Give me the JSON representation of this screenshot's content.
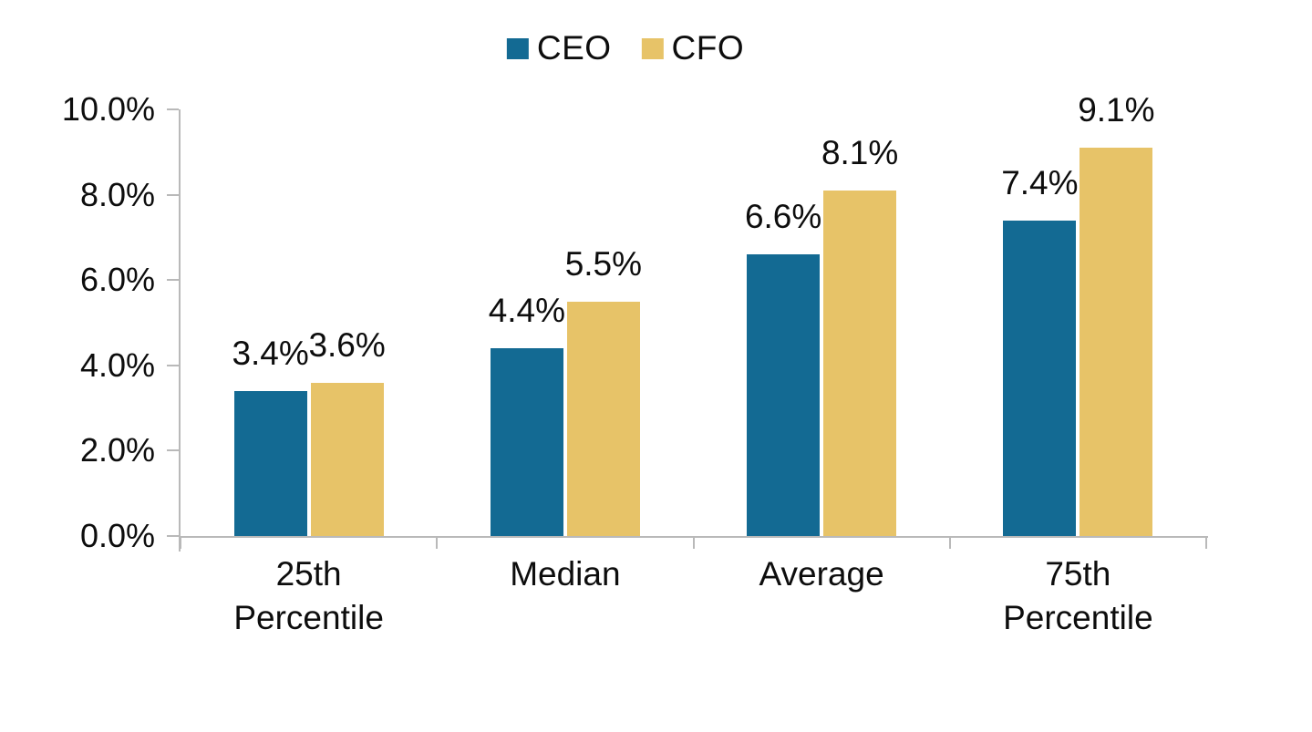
{
  "chart_data": {
    "type": "bar",
    "title": "",
    "categories": [
      "25th Percentile",
      "Median",
      "Average",
      "75th Percentile"
    ],
    "category_lines": [
      [
        "25th",
        "Percentile"
      ],
      [
        "Median"
      ],
      [
        "Average"
      ],
      [
        "75th",
        "Percentile"
      ]
    ],
    "series": [
      {
        "name": "CEO",
        "color": "#136a93",
        "values": [
          3.4,
          4.4,
          6.6,
          7.4
        ],
        "labels": [
          "3.4%",
          "4.4%",
          "6.6%",
          "7.4%"
        ]
      },
      {
        "name": "CFO",
        "color": "#e7c368",
        "values": [
          3.6,
          5.5,
          8.1,
          9.1
        ],
        "labels": [
          "3.6%",
          "5.5%",
          "8.1%",
          "9.1%"
        ]
      }
    ],
    "ylim": [
      0,
      10
    ],
    "yticks": [
      {
        "value": 0,
        "label": "0.0%"
      },
      {
        "value": 2,
        "label": "2.0%"
      },
      {
        "value": 4,
        "label": "4.0%"
      },
      {
        "value": 6,
        "label": "6.0%"
      },
      {
        "value": 8,
        "label": "8.0%"
      },
      {
        "value": 10,
        "label": "10.0%"
      }
    ],
    "grid": false,
    "legend_position": "top-center",
    "axis_color": "#b9b9b9",
    "text_color": "#0d0d0d",
    "background": "#ffffff"
  }
}
